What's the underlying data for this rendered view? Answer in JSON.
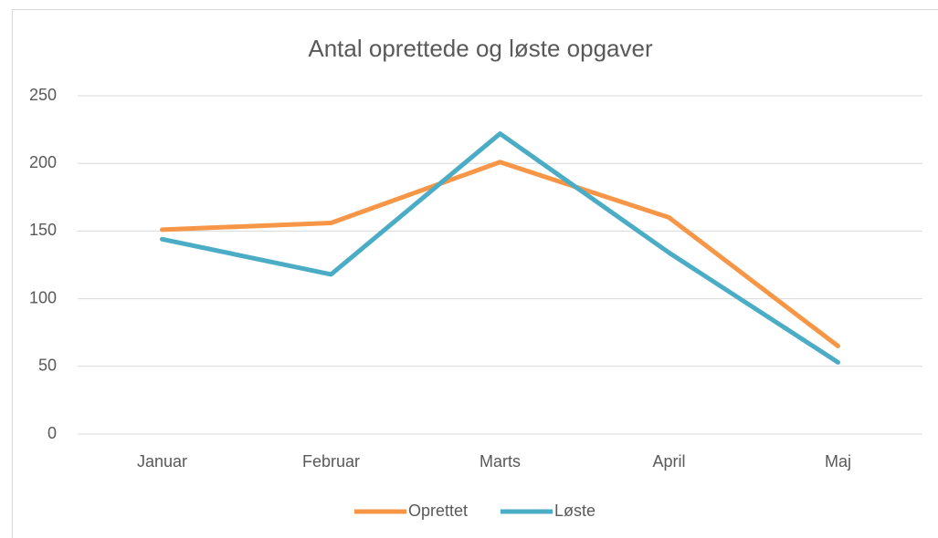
{
  "chart_data": {
    "type": "line",
    "title": "Antal oprettede og løste opgaver",
    "categories": [
      "Januar",
      "Februar",
      "Marts",
      "April",
      "Maj"
    ],
    "series": [
      {
        "name": "Oprettet",
        "color": "#f79646",
        "values": [
          151,
          156,
          201,
          160,
          65
        ]
      },
      {
        "name": "Løste",
        "color": "#4bacc6",
        "values": [
          144,
          118,
          222,
          134,
          53
        ]
      }
    ],
    "ylim": [
      0,
      250
    ],
    "yticks": [
      0,
      50,
      100,
      150,
      200,
      250
    ],
    "grid": true,
    "legend": "bottom"
  }
}
